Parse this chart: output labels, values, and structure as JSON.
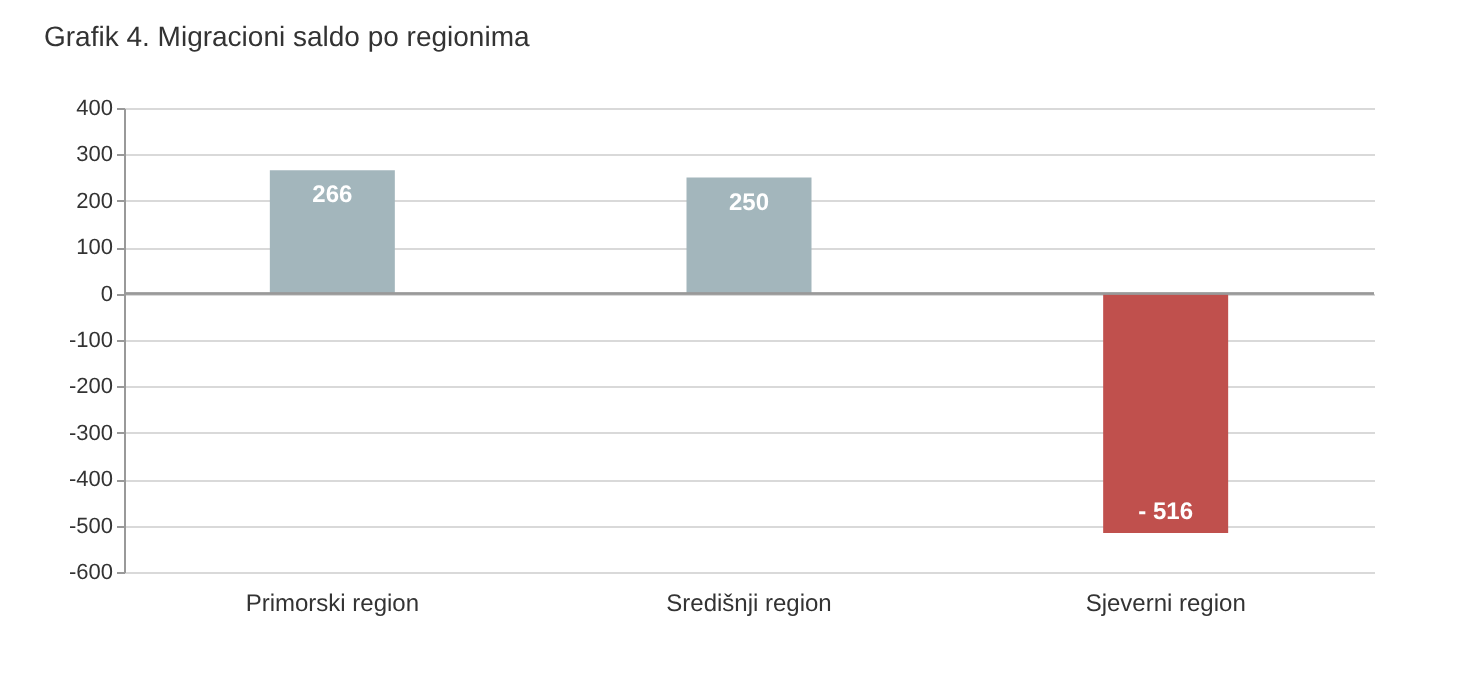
{
  "chart_data": {
    "type": "bar",
    "title": "Grafik 4. Migracioni saldo po regionima",
    "categories": [
      "Primorski region",
      "Središnji region",
      "Sjeverni region"
    ],
    "values": [
      266,
      250,
      -516
    ],
    "colors": [
      "#a3b6bc",
      "#a3b6bc",
      "#c0504d"
    ],
    "value_labels": [
      "266",
      "250",
      "- 516"
    ],
    "ylim": [
      -600,
      400
    ],
    "yticks": [
      -600,
      -500,
      -400,
      -300,
      -200,
      -100,
      0,
      100,
      200,
      300,
      400
    ],
    "grid": "y",
    "legend": false
  }
}
